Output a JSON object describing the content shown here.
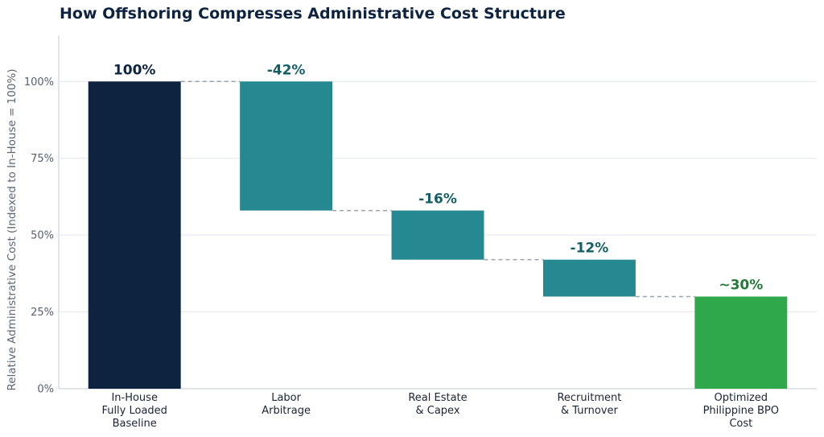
{
  "chart_data": {
    "type": "waterfall",
    "title": "How Offshoring Compresses Administrative Cost Structure",
    "ylabel": "Relative Administrative Cost (Indexed to In-House = 100%)",
    "xlabel": "",
    "ylim": [
      0,
      115
    ],
    "yticks": [
      0,
      25,
      50,
      75,
      100
    ],
    "ytick_labels": [
      "0%",
      "25%",
      "50%",
      "75%",
      "100%"
    ],
    "grid": "horizontal",
    "steps": [
      {
        "category": "In-House\nFully Loaded\nBaseline",
        "kind": "total",
        "start": 0,
        "end": 100,
        "label": "100%",
        "color": "#0d2340",
        "label_color": "#0d2340"
      },
      {
        "category": "Labor\nArbitrage",
        "kind": "decrease",
        "start": 100,
        "end": 58,
        "label": "-42%",
        "color": "#268890",
        "label_color": "#145f66"
      },
      {
        "category": "Real Estate\n& Capex",
        "kind": "decrease",
        "start": 58,
        "end": 42,
        "label": "-16%",
        "color": "#268890",
        "label_color": "#145f66"
      },
      {
        "category": "Recruitment\n& Turnover",
        "kind": "decrease",
        "start": 42,
        "end": 30,
        "label": "-12%",
        "color": "#268890",
        "label_color": "#145f66"
      },
      {
        "category": "Optimized\nPhilippine BPO\nCost",
        "kind": "total",
        "start": 0,
        "end": 30,
        "label": "~30%",
        "color": "#2ea84a",
        "label_color": "#237a37"
      }
    ],
    "connector_color": "#9aa3ad",
    "grid_color": "#e3e7ec",
    "axis_color": "#c5ccd4"
  }
}
